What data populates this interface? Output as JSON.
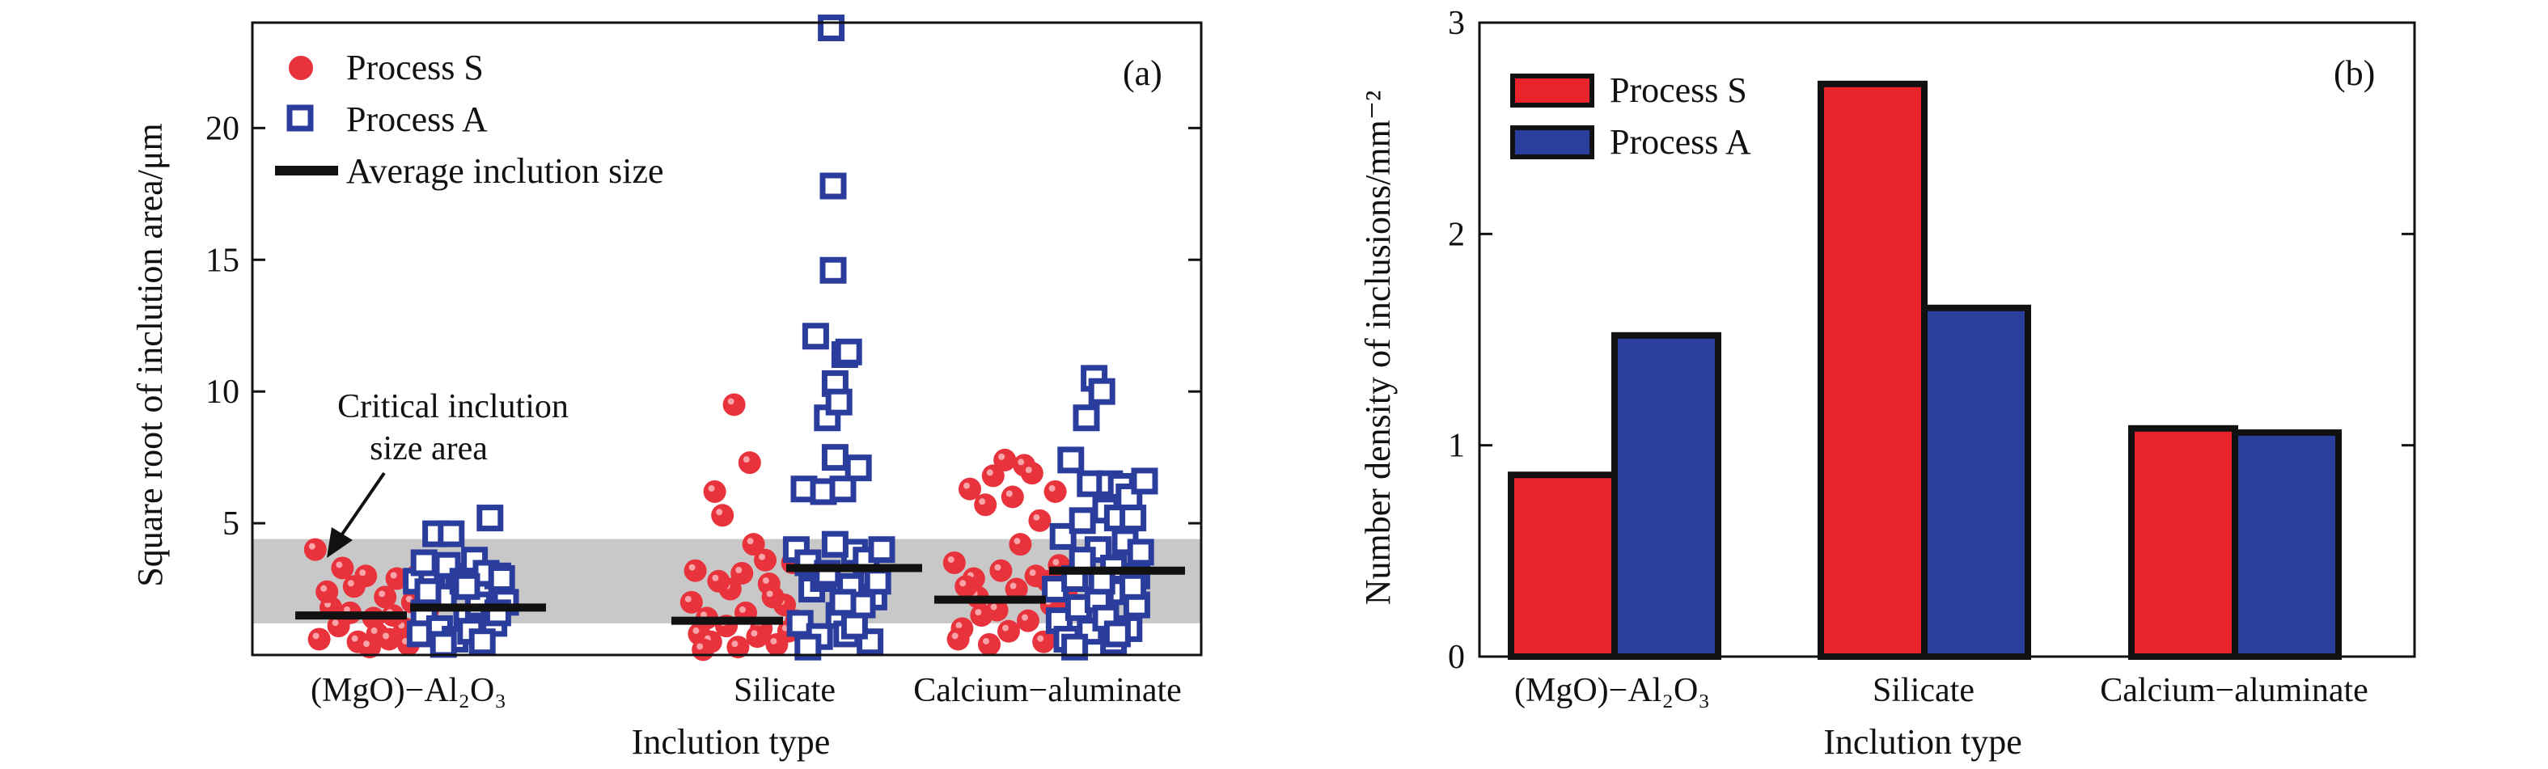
{
  "chart_data": [
    {
      "type": "scatter",
      "panel_label": "(a)",
      "xlabel": "Inclution type",
      "ylabel": "Square root of inclution area/μm",
      "categories": [
        "(MgO)−Al₂O₃",
        "Silicate",
        "Calcium−aluminate"
      ],
      "ylim": [
        0,
        24
      ],
      "yticks": [
        5,
        10,
        15,
        20
      ],
      "grid": false,
      "legend_position": "top-left",
      "legend": {
        "process_s": "Process S",
        "process_a": "Process A",
        "average": "Average inclution size"
      },
      "critical_band": [
        1.2,
        4.4
      ],
      "annotation": [
        "Critical inclution",
        "size area"
      ],
      "series": [
        {
          "name": "Process S",
          "color": "#e8323c",
          "marker": "circle",
          "category_index": [
            0,
            1,
            2
          ],
          "points": [
            [
              [
                -0.48,
                4.0
              ],
              [
                -0.4,
                1.8
              ],
              [
                -0.34,
                3.3
              ],
              [
                -0.28,
                2.6
              ],
              [
                -0.22,
                3.0
              ],
              [
                -0.18,
                1.4
              ],
              [
                -0.12,
                2.2
              ],
              [
                -0.06,
                2.9
              ],
              [
                -0.02,
                1.0
              ],
              [
                0.02,
                2.0
              ],
              [
                0.08,
                1.2
              ],
              [
                0.12,
                2.7
              ],
              [
                -0.46,
                0.6
              ],
              [
                -0.36,
                1.1
              ],
              [
                -0.26,
                0.5
              ],
              [
                -0.16,
                0.8
              ],
              [
                -0.08,
                1.5
              ],
              [
                0.0,
                0.4
              ],
              [
                0.06,
                0.9
              ],
              [
                -0.42,
                2.4
              ],
              [
                -0.3,
                1.6
              ],
              [
                -0.2,
                0.3
              ],
              [
                0.1,
                1.7
              ],
              [
                -0.1,
                0.6
              ],
              [
                0.04,
                3.0
              ]
            ],
            [
              [
                -0.48,
                2.0
              ],
              [
                -0.44,
                0.8
              ],
              [
                -0.4,
                1.4
              ],
              [
                -0.36,
                6.2
              ],
              [
                -0.32,
                5.3
              ],
              [
                -0.28,
                2.5
              ],
              [
                -0.26,
                9.5
              ],
              [
                -0.22,
                3.1
              ],
              [
                -0.18,
                7.3
              ],
              [
                -0.16,
                4.2
              ],
              [
                -0.12,
                1.0
              ],
              [
                -0.08,
                2.7
              ],
              [
                -0.04,
                0.4
              ],
              [
                0.0,
                1.9
              ],
              [
                0.04,
                3.5
              ],
              [
                -0.46,
                3.2
              ],
              [
                -0.38,
                0.5
              ],
              [
                -0.3,
                1.1
              ],
              [
                -0.24,
                0.3
              ],
              [
                -0.14,
                0.7
              ],
              [
                -0.06,
                2.2
              ],
              [
                0.02,
                0.9
              ],
              [
                -0.34,
                2.8
              ],
              [
                -0.2,
                1.6
              ],
              [
                -0.1,
                3.6
              ],
              [
                0.06,
                1.3
              ],
              [
                -0.42,
                0.2
              ]
            ],
            [
              [
                -0.48,
                3.5
              ],
              [
                -0.44,
                1.0
              ],
              [
                -0.4,
                6.3
              ],
              [
                -0.36,
                2.2
              ],
              [
                -0.32,
                5.7
              ],
              [
                -0.28,
                6.8
              ],
              [
                -0.24,
                3.2
              ],
              [
                -0.22,
                7.4
              ],
              [
                -0.18,
                6.0
              ],
              [
                -0.14,
                4.2
              ],
              [
                -0.12,
                7.2
              ],
              [
                -0.08,
                6.9
              ],
              [
                -0.04,
                5.1
              ],
              [
                0.0,
                2.8
              ],
              [
                0.04,
                6.2
              ],
              [
                0.06,
                3.4
              ],
              [
                -0.46,
                0.6
              ],
              [
                -0.38,
                2.9
              ],
              [
                -0.3,
                0.4
              ],
              [
                -0.26,
                1.7
              ],
              [
                -0.2,
                0.9
              ],
              [
                -0.16,
                2.5
              ],
              [
                -0.1,
                1.3
              ],
              [
                -0.06,
                3.0
              ],
              [
                -0.02,
                0.5
              ],
              [
                0.02,
                1.9
              ],
              [
                -0.34,
                1.5
              ],
              [
                0.08,
                0.8
              ],
              [
                -0.42,
                2.6
              ],
              [
                0.1,
                2.2
              ]
            ]
          ],
          "average": [
            1.5,
            1.3,
            2.1
          ]
        },
        {
          "name": "Process A",
          "color": "#2b3d9c",
          "marker": "square",
          "category_index": [
            0,
            1,
            2
          ],
          "points": [
            [
              [
                0.04,
                2.8
              ],
              [
                0.08,
                1.6
              ],
              [
                0.12,
                3.2
              ],
              [
                0.14,
                4.6
              ],
              [
                0.18,
                2.2
              ],
              [
                0.22,
                4.6
              ],
              [
                0.26,
                3.0
              ],
              [
                0.3,
                1.4
              ],
              [
                0.34,
                3.6
              ],
              [
                0.38,
                2.6
              ],
              [
                0.42,
                5.2
              ],
              [
                0.46,
                3.0
              ],
              [
                0.5,
                2.0
              ],
              [
                0.06,
                0.8
              ],
              [
                0.1,
                2.4
              ],
              [
                0.16,
                1.0
              ],
              [
                0.2,
                3.4
              ],
              [
                0.24,
                0.6
              ],
              [
                0.28,
                2.8
              ],
              [
                0.32,
                0.9
              ],
              [
                0.36,
                1.9
              ],
              [
                0.4,
                3.1
              ],
              [
                0.44,
                1.2
              ],
              [
                0.48,
                2.9
              ],
              [
                0.08,
                3.5
              ],
              [
                0.3,
                2.6
              ],
              [
                0.18,
                0.4
              ],
              [
                0.38,
                0.5
              ],
              [
                0.46,
                1.6
              ]
            ],
            [
              [
                0.06,
                4.0
              ],
              [
                0.1,
                6.3
              ],
              [
                0.14,
                2.5
              ],
              [
                0.16,
                12.1
              ],
              [
                0.2,
                6.2
              ],
              [
                0.22,
                9.0
              ],
              [
                0.24,
                23.8
              ],
              [
                0.25,
                17.8
              ],
              [
                0.25,
                14.6
              ],
              [
                0.26,
                10.3
              ],
              [
                0.26,
                7.5
              ],
              [
                0.28,
                9.6
              ],
              [
                0.3,
                6.3
              ],
              [
                0.31,
                11.4
              ],
              [
                0.33,
                11.5
              ],
              [
                0.36,
                3.9
              ],
              [
                0.38,
                7.1
              ],
              [
                0.42,
                3.6
              ],
              [
                0.46,
                2.2
              ],
              [
                0.5,
                4.0
              ],
              [
                0.08,
                1.2
              ],
              [
                0.12,
                3.5
              ],
              [
                0.18,
                0.7
              ],
              [
                0.2,
                2.9
              ],
              [
                0.28,
                1.5
              ],
              [
                0.32,
                0.8
              ],
              [
                0.34,
                2.6
              ],
              [
                0.4,
                1.9
              ],
              [
                0.44,
                0.5
              ],
              [
                0.48,
                2.8
              ],
              [
                0.12,
                0.3
              ],
              [
                0.36,
                1.1
              ],
              [
                0.22,
                3.1
              ],
              [
                0.3,
                2.0
              ],
              [
                0.26,
                4.2
              ]
            ],
            [
              [
                0.04,
                2.5
              ],
              [
                0.08,
                4.5
              ],
              [
                0.12,
                7.4
              ],
              [
                0.14,
                2.9
              ],
              [
                0.18,
                5.1
              ],
              [
                0.2,
                9.0
              ],
              [
                0.22,
                6.5
              ],
              [
                0.24,
                10.5
              ],
              [
                0.26,
                4.0
              ],
              [
                0.28,
                10.0
              ],
              [
                0.3,
                5.5
              ],
              [
                0.32,
                6.5
              ],
              [
                0.34,
                3.3
              ],
              [
                0.36,
                5.2
              ],
              [
                0.38,
                6.4
              ],
              [
                0.4,
                4.3
              ],
              [
                0.42,
                6.0
              ],
              [
                0.44,
                5.2
              ],
              [
                0.46,
                3.0
              ],
              [
                0.5,
                6.6
              ],
              [
                0.06,
                1.3
              ],
              [
                0.1,
                0.6
              ],
              [
                0.16,
                1.8
              ],
              [
                0.18,
                3.6
              ],
              [
                0.22,
                0.9
              ],
              [
                0.26,
                2.1
              ],
              [
                0.3,
                1.4
              ],
              [
                0.34,
                0.5
              ],
              [
                0.38,
                2.4
              ],
              [
                0.42,
                1.0
              ],
              [
                0.46,
                1.9
              ],
              [
                0.48,
                3.9
              ],
              [
                0.14,
                0.3
              ],
              [
                0.28,
                2.8
              ],
              [
                0.36,
                0.8
              ],
              [
                0.44,
                2.6
              ]
            ]
          ],
          "average": [
            1.8,
            3.3,
            3.2
          ]
        }
      ]
    },
    {
      "type": "bar",
      "panel_label": "(b)",
      "xlabel": "Inclution type",
      "ylabel": "Number density of inclusions/mm⁻²",
      "categories": [
        "(MgO)−Al₂O₃",
        "Silicate",
        "Calcium−aluminate"
      ],
      "ylim": [
        0,
        3
      ],
      "yticks": [
        0,
        1,
        2,
        3
      ],
      "grid": false,
      "legend_position": "top-left",
      "series": [
        {
          "name": "Process S",
          "color": "#e8232b",
          "values": [
            0.86,
            2.71,
            1.08
          ]
        },
        {
          "name": "Process A",
          "color": "#2a3e9e",
          "values": [
            1.52,
            1.65,
            1.06
          ]
        }
      ]
    }
  ]
}
